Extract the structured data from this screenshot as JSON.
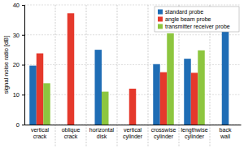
{
  "chart_data": {
    "type": "bar",
    "y_label": "signal noise ratio [dB]",
    "categories": [
      "vertical crack",
      "oblique crack",
      "horizontal disk",
      "vertical cylinder",
      "crosswise cylinder",
      "lengthwise cylinder",
      "back wall"
    ],
    "series": [
      {
        "name": "standard probe",
        "color": "#1f6db5",
        "values": [
          19.7,
          null,
          25,
          null,
          20.2,
          22,
          31
        ]
      },
      {
        "name": "angle beam probe",
        "color": "#e5392c",
        "values": [
          23.8,
          37.2,
          null,
          12,
          17.5,
          17.3,
          null
        ]
      },
      {
        "name": "transmitter receiver probe",
        "color": "#8dc63f",
        "values": [
          13.8,
          null,
          11,
          null,
          30.5,
          24.8,
          null
        ]
      }
    ],
    "ylim": [
      0,
      40
    ],
    "yticks": [
      0,
      10,
      20,
      30,
      40
    ],
    "grid": true,
    "legend": "upper right"
  }
}
